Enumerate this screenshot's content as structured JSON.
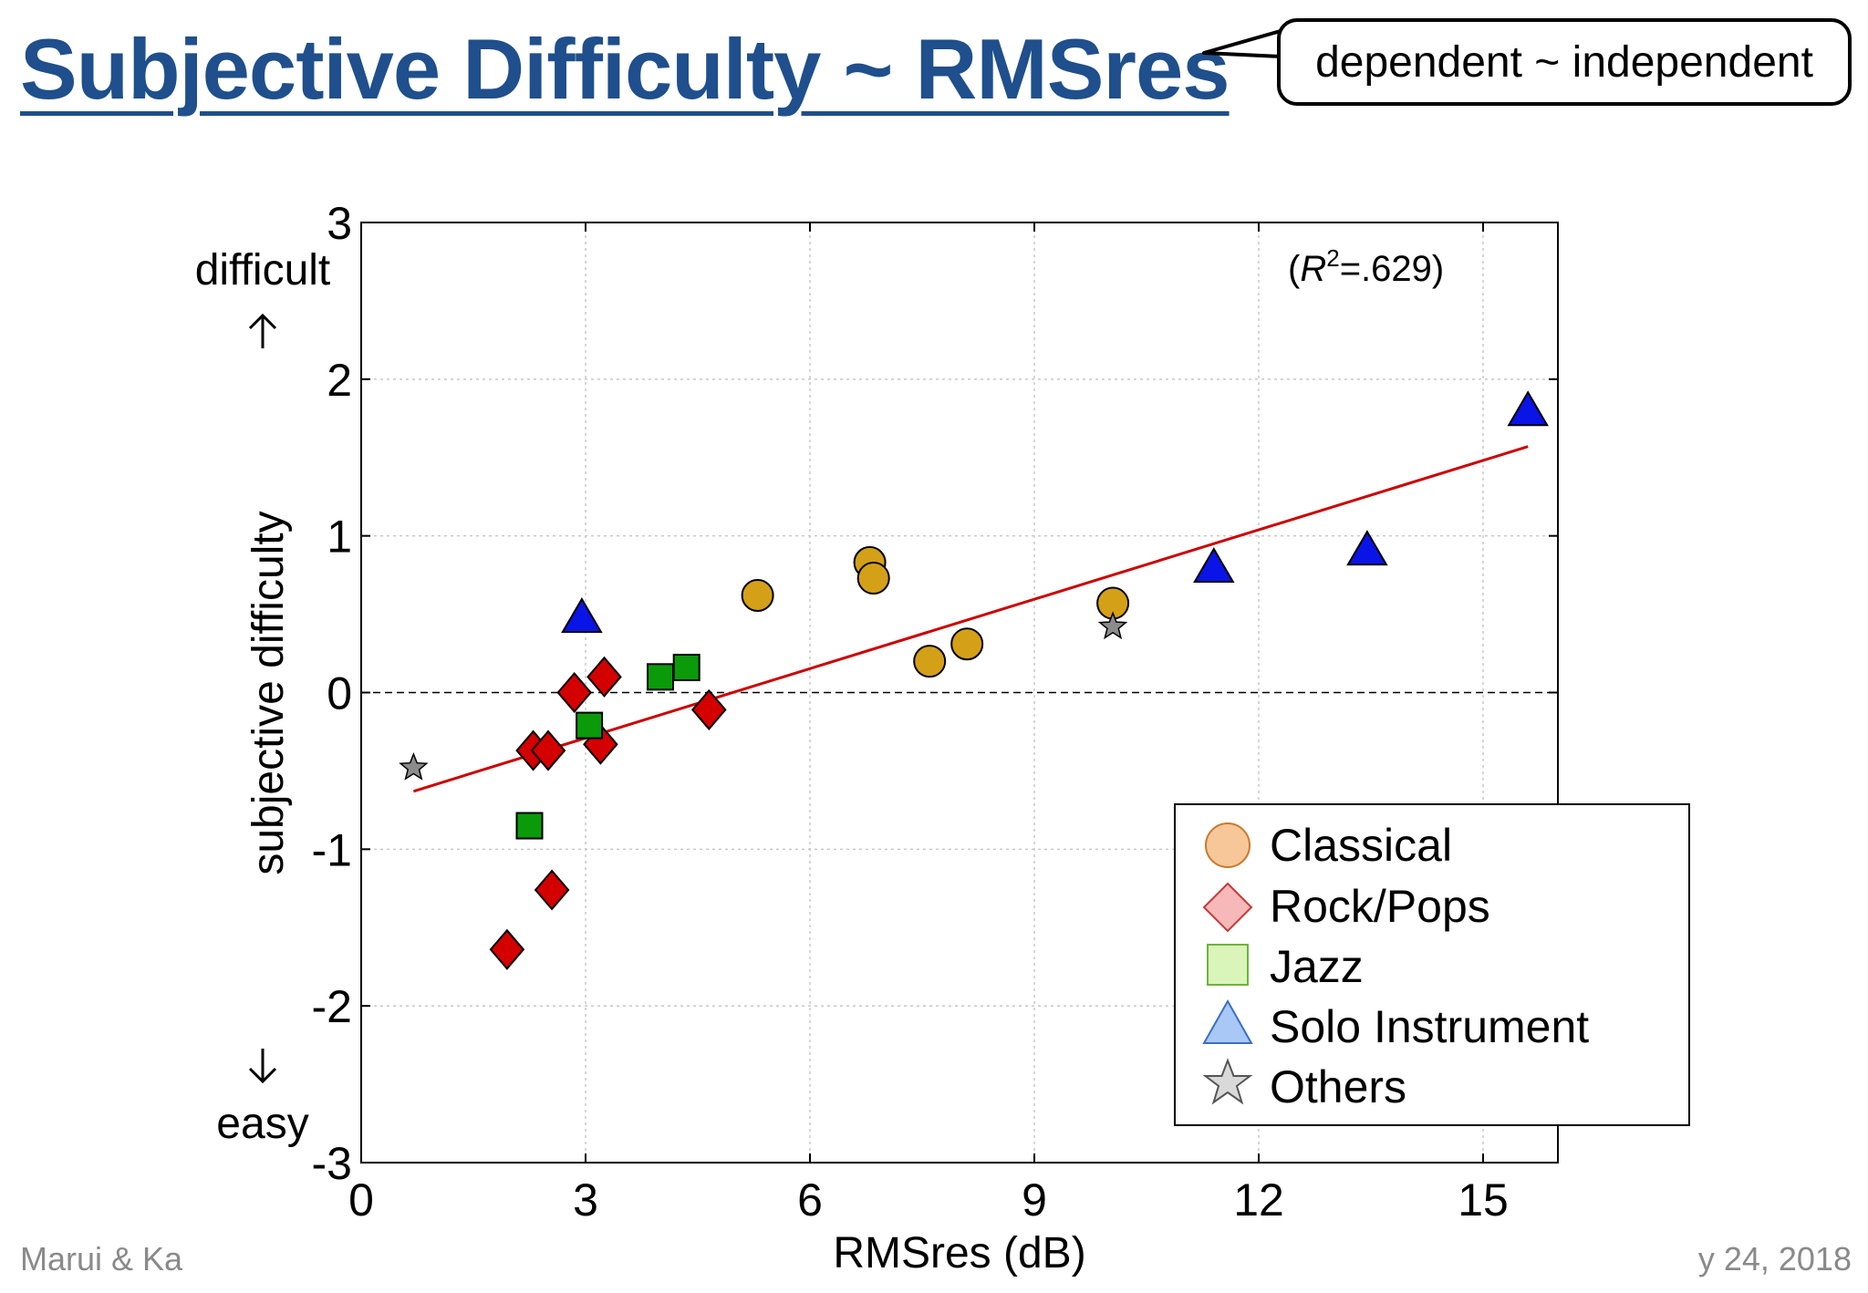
{
  "slide": {
    "title": "Subjective Difficulty ~ RMSres",
    "callout": "dependent ~ independent",
    "footer_left": "Marui & Ka",
    "footer_right": "y 24, 2018"
  },
  "colors": {
    "title": "#1f4f8c",
    "classical": "#d4a017",
    "rockpops": "#d40000",
    "jazz": "#0a9a0a",
    "solo": "#0a14e6",
    "others": "#8c8c8c",
    "regression": "#cc0000",
    "legend_classical": "#f7c79a",
    "legend_rockpops": "#f6b8b8",
    "legend_jazz": "#d9f5b9",
    "legend_solo": "#a9c8f5",
    "legend_others": "#d9d9d9"
  },
  "chart_data": {
    "type": "scatter",
    "xlabel": "RMSres (dB)",
    "ylabel": "subjective difficulty",
    "xlim": [
      0,
      16
    ],
    "ylim": [
      -3,
      3
    ],
    "x_ticks": [
      "0",
      "3",
      "6",
      "9",
      "12",
      "15"
    ],
    "y_ticks": [
      "3",
      "2",
      "1",
      "0",
      "-1",
      "-2",
      "-3"
    ],
    "grid": true,
    "zero_line": true,
    "top_annotation": "difficult",
    "bottom_annotation": "easy",
    "r2_prefix": "(",
    "r2_symbol": "R",
    "r2_exp": "2",
    "r2_value": "=.629)",
    "legend_position": "bottom-right",
    "regression": {
      "x": [
        0.7,
        15.6
      ],
      "y": [
        -0.63,
        1.57
      ]
    },
    "series": [
      {
        "name": "Classical",
        "marker": "circle",
        "points": [
          [
            5.3,
            0.62
          ],
          [
            6.8,
            0.83
          ],
          [
            6.85,
            0.73
          ],
          [
            7.6,
            0.2
          ],
          [
            8.1,
            0.31
          ],
          [
            10.05,
            0.57
          ]
        ]
      },
      {
        "name": "Rock/Pops",
        "marker": "diamond",
        "points": [
          [
            1.95,
            -1.64
          ],
          [
            2.3,
            -0.37
          ],
          [
            2.5,
            -0.37
          ],
          [
            2.55,
            -1.26
          ],
          [
            2.85,
            0.0
          ],
          [
            3.2,
            -0.33
          ],
          [
            3.25,
            0.1
          ],
          [
            4.65,
            -0.11
          ]
        ]
      },
      {
        "name": "Jazz",
        "marker": "square",
        "points": [
          [
            2.25,
            -0.85
          ],
          [
            3.05,
            -0.21
          ],
          [
            4.0,
            0.1
          ],
          [
            4.35,
            0.16
          ]
        ]
      },
      {
        "name": "Solo Instrument",
        "marker": "triangle",
        "points": [
          [
            2.95,
            0.48
          ],
          [
            11.4,
            0.8
          ],
          [
            13.45,
            0.91
          ],
          [
            15.6,
            1.8
          ]
        ]
      },
      {
        "name": "Others",
        "marker": "star",
        "points": [
          [
            0.7,
            -0.48
          ],
          [
            10.05,
            0.42
          ]
        ]
      }
    ]
  }
}
